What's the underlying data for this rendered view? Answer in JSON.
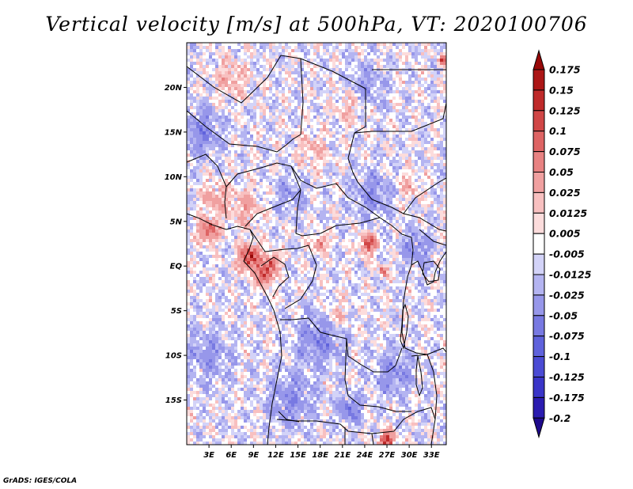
{
  "title": "Vertical velocity [m/s] at 500hPa, VT: 2020100706",
  "footer": "GrADS: IGES/COLA",
  "map": {
    "variable": "Vertical velocity",
    "units": "m/s",
    "level": "500hPa",
    "valid_time": "2020100706",
    "lon_range": [
      0,
      35
    ],
    "lat_range": [
      -20,
      25
    ],
    "lat_ticks": [
      {
        "value": 20,
        "label": "20N"
      },
      {
        "value": 15,
        "label": "15N"
      },
      {
        "value": 10,
        "label": "10N"
      },
      {
        "value": 5,
        "label": "5N"
      },
      {
        "value": 0,
        "label": "EQ"
      },
      {
        "value": -5,
        "label": "5S"
      },
      {
        "value": -10,
        "label": "10S"
      },
      {
        "value": -15,
        "label": "15S"
      }
    ],
    "lon_ticks": [
      {
        "value": 3,
        "label": "3E"
      },
      {
        "value": 6,
        "label": "6E"
      },
      {
        "value": 9,
        "label": "9E"
      },
      {
        "value": 12,
        "label": "12E"
      },
      {
        "value": 15,
        "label": "15E"
      },
      {
        "value": 18,
        "label": "18E"
      },
      {
        "value": 21,
        "label": "21E"
      },
      {
        "value": 24,
        "label": "24E"
      },
      {
        "value": 27,
        "label": "27E"
      },
      {
        "value": 30,
        "label": "30E"
      },
      {
        "value": 33,
        "label": "33E"
      }
    ],
    "hotspots": [
      {
        "lon": 8.5,
        "lat": 1.0,
        "w": 0.175,
        "r": 1.3
      },
      {
        "lon": 10.5,
        "lat": -1.0,
        "w": 0.15,
        "r": 1.1
      },
      {
        "lon": 11.5,
        "lat": 0.5,
        "w": 0.12,
        "r": 0.9
      },
      {
        "lon": 24.5,
        "lat": 2.5,
        "w": 0.15,
        "r": 1.0
      },
      {
        "lon": 26.5,
        "lat": -0.5,
        "w": 0.1,
        "r": 0.6
      },
      {
        "lon": 18.0,
        "lat": 2.5,
        "w": 0.1,
        "r": 0.8
      },
      {
        "lon": 3.0,
        "lat": 4.0,
        "w": 0.125,
        "r": 1.2
      },
      {
        "lon": 27.0,
        "lat": -19.5,
        "w": 0.175,
        "r": 0.9
      },
      {
        "lon": 8.0,
        "lat": 6.5,
        "w": 0.05,
        "r": 2.0
      },
      {
        "lon": 4.0,
        "lat": 7.5,
        "w": 0.05,
        "r": 1.8
      },
      {
        "lon": 34.5,
        "lat": 23.0,
        "w": 0.15,
        "r": 0.5
      },
      {
        "lon": 6.0,
        "lat": 21.0,
        "w": 0.04,
        "r": 2.2
      },
      {
        "lon": 17.0,
        "lat": 13.0,
        "w": 0.035,
        "r": 2.0
      },
      {
        "lon": 20.0,
        "lat": -5.5,
        "w": 0.04,
        "r": 1.8
      },
      {
        "lon": 30.0,
        "lat": 9.0,
        "w": 0.035,
        "r": 1.5
      },
      {
        "lon": 22.0,
        "lat": 18.0,
        "w": 0.04,
        "r": 2.0
      }
    ],
    "coldspots": [
      {
        "lon": 2.0,
        "lat": 15.0,
        "w": -0.06,
        "r": 2.5
      },
      {
        "lon": 18.0,
        "lat": -8.0,
        "w": -0.06,
        "r": 3.0
      },
      {
        "lon": 25.0,
        "lat": 8.0,
        "w": -0.05,
        "r": 2.5
      },
      {
        "lon": 14.0,
        "lat": -15.0,
        "w": -0.05,
        "r": 3.0
      },
      {
        "lon": 28.0,
        "lat": -12.0,
        "w": -0.05,
        "r": 2.5
      },
      {
        "lon": 3.0,
        "lat": -10.0,
        "w": -0.04,
        "r": 3.0
      },
      {
        "lon": 24.0,
        "lat": 20.0,
        "w": -0.04,
        "r": 2.5
      },
      {
        "lon": 31.0,
        "lat": 2.0,
        "w": -0.05,
        "r": 2.0
      },
      {
        "lon": 14.0,
        "lat": 8.0,
        "w": -0.04,
        "r": 2.0
      },
      {
        "lon": 22.0,
        "lat": -16.0,
        "w": -0.07,
        "r": 1.5
      }
    ]
  },
  "colorbar": {
    "levels": [
      "-0.2",
      "-0.175",
      "-0.125",
      "-0.1",
      "-0.075",
      "-0.05",
      "-0.025",
      "-0.0125",
      "-0.005",
      "0.005",
      "0.0125",
      "0.025",
      "0.05",
      "0.075",
      "0.1",
      "0.125",
      "0.15",
      "0.175"
    ],
    "colors": [
      "#1e0a8c",
      "#2b1cb0",
      "#3a35c8",
      "#4b4bd4",
      "#5f62dc",
      "#7879e2",
      "#9797ea",
      "#b4b4f1",
      "#d3d3f8",
      "#ffffff",
      "#fcdcdc",
      "#f8c0c0",
      "#f0a0a0",
      "#e88282",
      "#de6464",
      "#d04646",
      "#bf2a2a",
      "#ac1616",
      "#980808"
    ]
  }
}
